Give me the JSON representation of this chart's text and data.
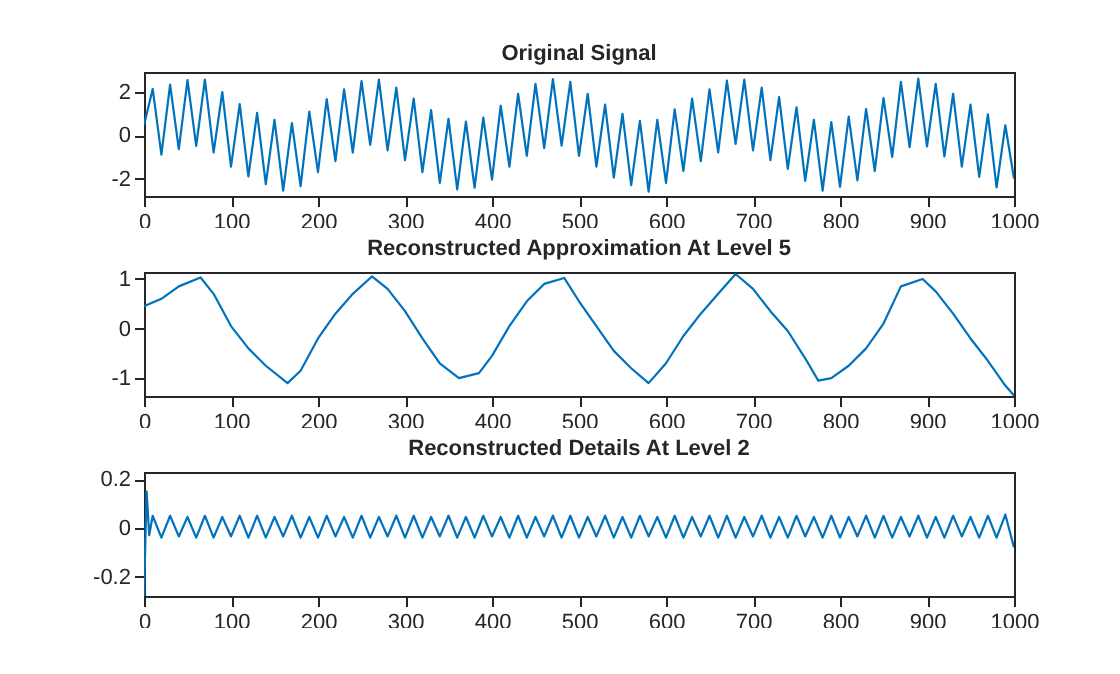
{
  "chart_data": [
    {
      "type": "line",
      "title": "Original Signal",
      "color": "#0072bd",
      "xlim": [
        0,
        1000
      ],
      "xticks": [
        0,
        100,
        200,
        300,
        400,
        500,
        600,
        700,
        800,
        900,
        1000
      ],
      "ylim": [
        -2.8,
        2.9
      ],
      "yticks": [
        -2,
        0,
        2
      ],
      "x": [
        0,
        10,
        20,
        30,
        40,
        50,
        60,
        70,
        80,
        90,
        100,
        110,
        120,
        130,
        140,
        150,
        160,
        170,
        180,
        190,
        200,
        210,
        220,
        230,
        240,
        250,
        260,
        270,
        280,
        290,
        300,
        310,
        320,
        330,
        340,
        350,
        360,
        370,
        380,
        390,
        400,
        410,
        420,
        430,
        440,
        450,
        460,
        470,
        480,
        490,
        500,
        510,
        520,
        530,
        540,
        550,
        560,
        570,
        580,
        590,
        600,
        610,
        620,
        630,
        640,
        650,
        660,
        670,
        680,
        690,
        700,
        710,
        720,
        730,
        740,
        750,
        760,
        770,
        780,
        790,
        800,
        810,
        820,
        830,
        840,
        850,
        860,
        870,
        880,
        890,
        900,
        910,
        920,
        930,
        940,
        950,
        960,
        970,
        980,
        990,
        1000
      ],
      "values": [
        0.45,
        2.12,
        -0.9,
        2.32,
        -0.65,
        2.53,
        -0.5,
        2.55,
        -0.8,
        1.98,
        -1.45,
        1.42,
        -1.9,
        1.02,
        -2.25,
        0.7,
        -2.55,
        0.55,
        -2.35,
        1.08,
        -1.7,
        1.65,
        -1.2,
        2.1,
        -0.8,
        2.48,
        -0.45,
        2.55,
        -0.7,
        2.18,
        -1.15,
        1.68,
        -1.7,
        1.15,
        -2.2,
        0.75,
        -2.5,
        0.62,
        -2.42,
        0.8,
        -2.05,
        1.35,
        -1.45,
        1.9,
        -0.95,
        2.35,
        -0.6,
        2.57,
        -0.48,
        2.45,
        -0.95,
        1.9,
        -1.45,
        1.4,
        -1.95,
        0.98,
        -2.3,
        0.65,
        -2.6,
        0.7,
        -2.2,
        1.18,
        -1.65,
        1.68,
        -1.2,
        2.1,
        -0.8,
        2.5,
        -0.4,
        2.55,
        -0.7,
        2.18,
        -1.15,
        1.75,
        -1.55,
        1.28,
        -2.1,
        0.7,
        -2.55,
        0.6,
        -2.38,
        0.85,
        -2.08,
        1.2,
        -1.65,
        1.7,
        -1.0,
        2.45,
        -0.55,
        2.6,
        -0.52,
        2.35,
        -0.98,
        1.9,
        -1.45,
        1.4,
        -1.92,
        0.95,
        -2.4,
        0.45,
        -2.0
      ]
    },
    {
      "type": "line",
      "title": "Reconstructed Approximation At Level 5",
      "color": "#0072bd",
      "xlim": [
        0,
        1000
      ],
      "xticks": [
        0,
        100,
        200,
        300,
        400,
        500,
        600,
        700,
        800,
        900,
        1000
      ],
      "ylim": [
        -1.36,
        1.14
      ],
      "yticks": [
        -1,
        0,
        1
      ],
      "x": [
        0,
        20,
        40,
        65,
        80,
        100,
        120,
        140,
        165,
        180,
        200,
        220,
        240,
        262,
        280,
        300,
        320,
        340,
        362,
        385,
        400,
        420,
        440,
        460,
        483,
        500,
        520,
        540,
        560,
        580,
        600,
        620,
        640,
        660,
        680,
        700,
        720,
        740,
        760,
        775,
        790,
        810,
        830,
        850,
        870,
        895,
        910,
        930,
        950,
        970,
        990,
        1000
      ],
      "values": [
        0.45,
        0.6,
        0.85,
        1.03,
        0.7,
        0.05,
        -0.4,
        -0.75,
        -1.1,
        -0.85,
        -0.2,
        0.3,
        0.7,
        1.05,
        0.8,
        0.35,
        -0.2,
        -0.7,
        -1.0,
        -0.9,
        -0.55,
        0.05,
        0.55,
        0.9,
        1.02,
        0.55,
        0.05,
        -0.45,
        -0.8,
        -1.1,
        -0.7,
        -0.15,
        0.3,
        0.7,
        1.1,
        0.8,
        0.35,
        -0.05,
        -0.6,
        -1.05,
        -1.0,
        -0.75,
        -0.4,
        0.1,
        0.85,
        1.0,
        0.75,
        0.3,
        -0.2,
        -0.65,
        -1.15,
        -1.35
      ]
    },
    {
      "type": "line",
      "title": "Reconstructed Details At Level 2",
      "color": "#0072bd",
      "xlim": [
        0,
        1000
      ],
      "xticks": [
        0,
        100,
        200,
        300,
        400,
        500,
        600,
        700,
        800,
        900,
        1000
      ],
      "ylim": [
        -0.28,
        0.23
      ],
      "yticks": [
        -0.2,
        0,
        0.2
      ],
      "x": [
        0,
        3,
        6,
        10,
        20,
        30,
        40,
        50,
        60,
        70,
        80,
        90,
        100,
        110,
        120,
        130,
        140,
        150,
        160,
        170,
        180,
        190,
        200,
        210,
        220,
        230,
        240,
        250,
        260,
        270,
        280,
        290,
        300,
        310,
        320,
        330,
        340,
        350,
        360,
        370,
        380,
        390,
        400,
        410,
        420,
        430,
        440,
        450,
        460,
        470,
        480,
        490,
        500,
        510,
        520,
        530,
        540,
        550,
        560,
        570,
        580,
        590,
        600,
        610,
        620,
        630,
        640,
        650,
        660,
        670,
        680,
        690,
        700,
        710,
        720,
        730,
        740,
        750,
        760,
        770,
        780,
        790,
        800,
        810,
        820,
        830,
        840,
        850,
        860,
        870,
        880,
        890,
        900,
        910,
        920,
        930,
        940,
        950,
        960,
        970,
        980,
        990,
        1000
      ],
      "values": [
        -0.28,
        0.15,
        -0.03,
        0.05,
        -0.04,
        0.05,
        -0.035,
        0.045,
        -0.04,
        0.05,
        -0.04,
        0.045,
        -0.035,
        0.05,
        -0.04,
        0.05,
        -0.04,
        0.045,
        -0.035,
        0.05,
        -0.04,
        0.045,
        -0.04,
        0.05,
        -0.035,
        0.045,
        -0.04,
        0.05,
        -0.04,
        0.045,
        -0.035,
        0.05,
        -0.04,
        0.05,
        -0.04,
        0.045,
        -0.035,
        0.05,
        -0.04,
        0.045,
        -0.04,
        0.05,
        -0.035,
        0.045,
        -0.04,
        0.05,
        -0.04,
        0.045,
        -0.035,
        0.05,
        -0.04,
        0.05,
        -0.04,
        0.045,
        -0.035,
        0.05,
        -0.04,
        0.045,
        -0.04,
        0.05,
        -0.035,
        0.045,
        -0.04,
        0.05,
        -0.04,
        0.045,
        -0.035,
        0.05,
        -0.04,
        0.05,
        -0.04,
        0.045,
        -0.035,
        0.05,
        -0.04,
        0.045,
        -0.04,
        0.05,
        -0.035,
        0.045,
        -0.04,
        0.05,
        -0.04,
        0.045,
        -0.035,
        0.05,
        -0.04,
        0.05,
        -0.04,
        0.045,
        -0.035,
        0.05,
        -0.04,
        0.045,
        -0.04,
        0.05,
        -0.035,
        0.045,
        -0.04,
        0.05,
        -0.04,
        0.055,
        -0.08
      ]
    }
  ]
}
